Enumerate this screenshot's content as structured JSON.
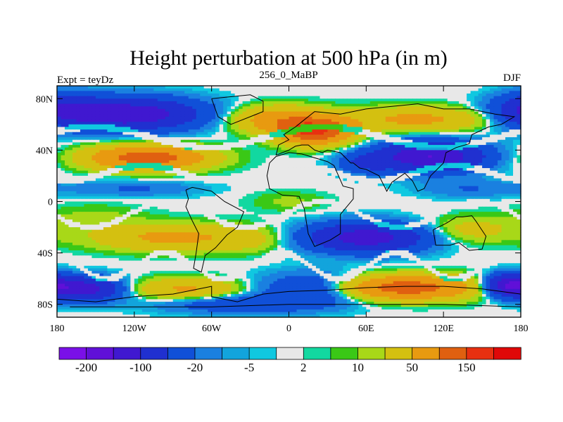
{
  "chart_data": {
    "type": "heatmap",
    "title": "Height perturbation at 500 hPa (in m)",
    "left_string": "Expt = teyDz",
    "center_string": "256_0_MaBP",
    "right_string": "DJF",
    "x_range": [
      -180,
      180
    ],
    "y_range": [
      -90,
      90
    ],
    "x_ticks": [
      {
        "value": -180,
        "label": "180"
      },
      {
        "value": -120,
        "label": "120W"
      },
      {
        "value": -60,
        "label": "60W"
      },
      {
        "value": 0,
        "label": "0"
      },
      {
        "value": 60,
        "label": "60E"
      },
      {
        "value": 120,
        "label": "120E"
      },
      {
        "value": 180,
        "label": "180"
      }
    ],
    "y_ticks": [
      {
        "value": 80,
        "label": "80N"
      },
      {
        "value": 40,
        "label": "40N"
      },
      {
        "value": 0,
        "label": "0"
      },
      {
        "value": -40,
        "label": "40S"
      },
      {
        "value": -80,
        "label": "80S"
      }
    ],
    "colorbar": {
      "levels": [
        -200,
        -150,
        -100,
        -50,
        -20,
        -10,
        -5,
        -2,
        2,
        5,
        10,
        20,
        50,
        100,
        150,
        200
      ],
      "colors": [
        "#7a10e8",
        "#6010d8",
        "#4018d0",
        "#2030d0",
        "#1050d8",
        "#1a80e0",
        "#12a4dc",
        "#10c8e0",
        "#e8e8e8",
        "#12d8a0",
        "#3ac816",
        "#a8d818",
        "#d4c010",
        "#e89a10",
        "#e06010",
        "#e83010",
        "#e00808"
      ],
      "labels": [
        {
          "level": -200,
          "text": "-200"
        },
        {
          "level": -100,
          "text": "-100"
        },
        {
          "level": -20,
          "text": "-20"
        },
        {
          "level": -5,
          "text": "-5"
        },
        {
          "level": 2,
          "text": "2"
        },
        {
          "level": 10,
          "text": "10"
        },
        {
          "level": 50,
          "text": "50"
        },
        {
          "level": 150,
          "text": "150"
        }
      ]
    },
    "anomaly_features": [
      {
        "lon": -125,
        "lat": 68,
        "value": -140,
        "rlon": 55,
        "rlat": 12
      },
      {
        "lon": -175,
        "lat": 72,
        "value": -70,
        "rlon": 25,
        "rlat": 12
      },
      {
        "lon": -110,
        "lat": 34,
        "value": 130,
        "rlon": 45,
        "rlat": 9
      },
      {
        "lon": 20,
        "lat": 55,
        "value": 160,
        "rlon": 28,
        "rlat": 10
      },
      {
        "lon": -10,
        "lat": 64,
        "value": 70,
        "rlon": 35,
        "rlat": 10
      },
      {
        "lon": 100,
        "lat": 64,
        "value": 60,
        "rlon": 55,
        "rlat": 9
      },
      {
        "lon": 110,
        "lat": 35,
        "value": -150,
        "rlon": 40,
        "rlat": 11
      },
      {
        "lon": 60,
        "lat": 30,
        "value": -50,
        "rlon": 20,
        "rlat": 8
      },
      {
        "lon": -120,
        "lat": 10,
        "value": -22,
        "rlon": 50,
        "rlat": 6
      },
      {
        "lon": 140,
        "lat": 10,
        "value": -20,
        "rlon": 40,
        "rlat": 7
      },
      {
        "lon": 0,
        "lat": 0,
        "value": 12,
        "rlon": 30,
        "rlat": 8
      },
      {
        "lon": 100,
        "lat": -2,
        "value": 1,
        "rlon": 8,
        "rlat": 6
      },
      {
        "lon": -150,
        "lat": -12,
        "value": 12,
        "rlon": 40,
        "rlat": 10
      },
      {
        "lon": -90,
        "lat": -28,
        "value": 60,
        "rlon": 60,
        "rlat": 10
      },
      {
        "lon": 60,
        "lat": -28,
        "value": -130,
        "rlon": 45,
        "rlat": 11
      },
      {
        "lon": 140,
        "lat": -22,
        "value": 30,
        "rlon": 35,
        "rlat": 10
      },
      {
        "lon": -30,
        "lat": -30,
        "value": 15,
        "rlon": 25,
        "rlat": 10
      },
      {
        "lon": -160,
        "lat": -68,
        "value": -130,
        "rlon": 28,
        "rlat": 9
      },
      {
        "lon": -80,
        "lat": -68,
        "value": 55,
        "rlon": 40,
        "rlat": 8
      },
      {
        "lon": 20,
        "lat": -68,
        "value": -60,
        "rlon": 40,
        "rlat": 12
      },
      {
        "lon": 90,
        "lat": -67,
        "value": 130,
        "rlon": 55,
        "rlat": 9
      },
      {
        "lon": 170,
        "lat": -65,
        "value": -140,
        "rlon": 18,
        "rlat": 8
      },
      {
        "lon": -40,
        "lat": -80,
        "value": -40,
        "rlon": 60,
        "rlat": 7
      }
    ],
    "zero_bands": [
      {
        "lon0": -180,
        "lon1": 180,
        "lat": 50,
        "amp": 8,
        "k": 2,
        "phase": 0.6,
        "width": 2.5
      },
      {
        "lon0": -180,
        "lon1": 180,
        "lat": 22,
        "amp": 6,
        "k": 3,
        "phase": 1.2,
        "width": 2.5
      },
      {
        "lon0": -180,
        "lon1": 180,
        "lat": -10,
        "amp": 10,
        "k": 3,
        "phase": 0.2,
        "width": 2.2
      },
      {
        "lon0": -180,
        "lon1": 180,
        "lat": -50,
        "amp": 10,
        "k": 4,
        "phase": 2.0,
        "width": 2.5
      }
    ]
  }
}
